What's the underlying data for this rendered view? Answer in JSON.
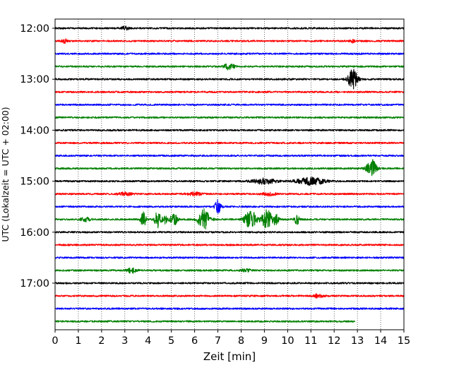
{
  "chart_data": {
    "type": "line",
    "title": "",
    "xlabel": "Zeit  [min]",
    "ylabel": "UTC (Lokalzeit = UTC + 02:00)",
    "xlim": [
      0,
      15
    ],
    "x_ticks": [
      0,
      1,
      2,
      3,
      4,
      5,
      6,
      7,
      8,
      9,
      10,
      11,
      12,
      13,
      14,
      15
    ],
    "y_tick_labels": [
      "12:00",
      "13:00",
      "14:00",
      "15:00",
      "16:00",
      "17:00"
    ],
    "grid": "vertical dotted at each minute",
    "trace_colors": [
      "#000000",
      "#ff0000",
      "#0000ff",
      "#008000"
    ],
    "traces": [
      {
        "start": "12:00",
        "end_min": 15,
        "events": [
          {
            "t": 3.0,
            "amp": 2.5,
            "width": 0.15
          }
        ]
      },
      {
        "start": "12:15",
        "end_min": 15,
        "events": [
          {
            "t": 0.4,
            "amp": 3.0,
            "width": 0.1
          },
          {
            "t": 12.8,
            "amp": 2.0,
            "width": 0.1
          }
        ]
      },
      {
        "start": "12:30",
        "end_min": 15,
        "events": []
      },
      {
        "start": "12:45",
        "end_min": 15,
        "events": [
          {
            "t": 7.5,
            "amp": 5.0,
            "width": 0.2
          }
        ]
      },
      {
        "start": "13:00",
        "end_min": 15,
        "events": [
          {
            "t": 12.8,
            "amp": 14.0,
            "width": 0.2
          }
        ]
      },
      {
        "start": "13:15",
        "end_min": 15,
        "events": []
      },
      {
        "start": "13:30",
        "end_min": 15,
        "events": []
      },
      {
        "start": "13:45",
        "end_min": 15,
        "events": []
      },
      {
        "start": "14:00",
        "end_min": 15,
        "events": []
      },
      {
        "start": "14:15",
        "end_min": 15,
        "events": []
      },
      {
        "start": "14:30",
        "end_min": 15,
        "events": []
      },
      {
        "start": "14:45",
        "end_min": 15,
        "events": [
          {
            "t": 13.6,
            "amp": 13.0,
            "width": 0.2
          }
        ]
      },
      {
        "start": "15:00",
        "end_min": 15,
        "events": [
          {
            "t": 9.0,
            "amp": 3.5,
            "width": 0.5
          },
          {
            "t": 11.0,
            "amp": 5.0,
            "width": 0.6
          }
        ]
      },
      {
        "start": "15:15",
        "end_min": 15,
        "events": [
          {
            "t": 3.0,
            "amp": 2.0,
            "width": 0.3
          },
          {
            "t": 6.0,
            "amp": 2.0,
            "width": 0.3
          },
          {
            "t": 9.2,
            "amp": 2.0,
            "width": 0.3
          }
        ]
      },
      {
        "start": "15:30",
        "end_min": 15,
        "events": [
          {
            "t": 7.0,
            "amp": 10.0,
            "width": 0.12
          }
        ]
      },
      {
        "start": "15:45",
        "end_min": 15,
        "events": [
          {
            "t": 1.3,
            "amp": 3.0,
            "width": 0.2
          },
          {
            "t": 3.8,
            "amp": 10.0,
            "width": 0.12
          },
          {
            "t": 4.4,
            "amp": 12.0,
            "width": 0.12
          },
          {
            "t": 4.7,
            "amp": 7.0,
            "width": 0.12
          },
          {
            "t": 5.1,
            "amp": 9.0,
            "width": 0.15
          },
          {
            "t": 6.4,
            "amp": 14.0,
            "width": 0.25
          },
          {
            "t": 8.4,
            "amp": 13.0,
            "width": 0.25
          },
          {
            "t": 9.1,
            "amp": 16.0,
            "width": 0.2
          },
          {
            "t": 9.5,
            "amp": 8.0,
            "width": 0.12
          },
          {
            "t": 10.4,
            "amp": 7.0,
            "width": 0.1
          }
        ]
      },
      {
        "start": "16:00",
        "end_min": 15,
        "events": []
      },
      {
        "start": "16:15",
        "end_min": 15,
        "events": []
      },
      {
        "start": "16:30",
        "end_min": 15,
        "events": []
      },
      {
        "start": "16:45",
        "end_min": 15,
        "events": [
          {
            "t": 3.3,
            "amp": 3.5,
            "width": 0.2
          },
          {
            "t": 8.2,
            "amp": 2.0,
            "width": 0.2
          }
        ]
      },
      {
        "start": "17:00",
        "end_min": 15,
        "events": []
      },
      {
        "start": "17:15",
        "end_min": 15,
        "events": [
          {
            "t": 11.3,
            "amp": 2.5,
            "width": 0.2
          }
        ]
      },
      {
        "start": "17:30",
        "end_min": 15,
        "events": []
      },
      {
        "start": "17:45",
        "end_min": 12.9,
        "events": []
      }
    ]
  }
}
